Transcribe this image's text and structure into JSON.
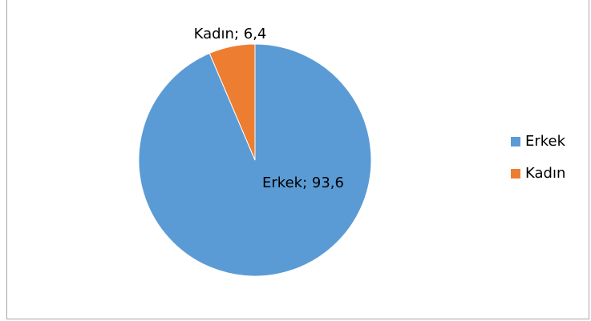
{
  "chart_data": {
    "type": "pie",
    "categories": [
      "Erkek",
      "Kadın"
    ],
    "values": [
      93.6,
      6.4
    ],
    "value_labels": [
      "Erkek; 93,6",
      "Kadın; 6,4"
    ],
    "colors": [
      "#5b9bd5",
      "#ed7d31"
    ],
    "legend": "right"
  }
}
